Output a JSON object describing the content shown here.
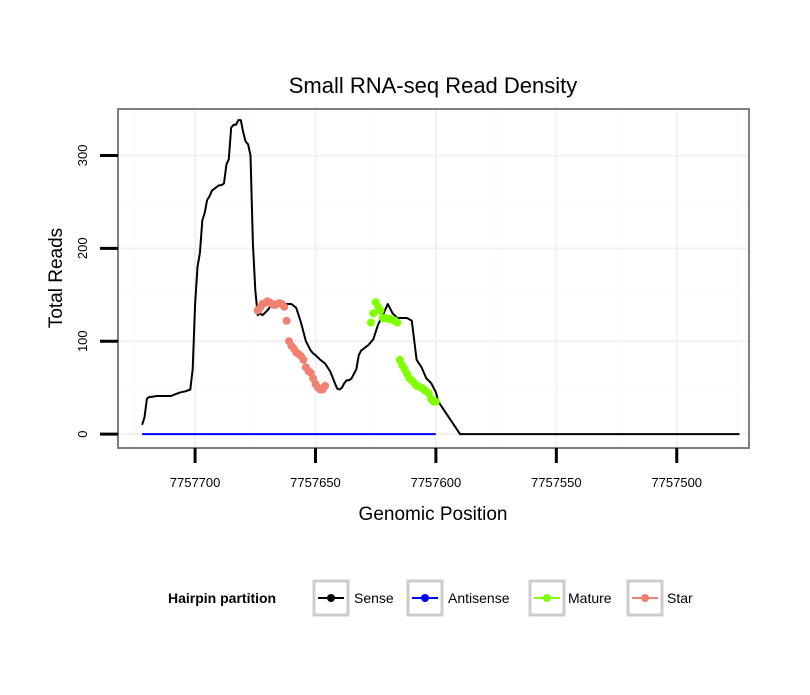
{
  "chart_data": {
    "type": "line",
    "title": "Small RNA-seq Read Density",
    "xlabel": "Genomic Position",
    "ylabel": "Total Reads",
    "x_reversed": true,
    "xlim": [
      7757470,
      7757732
    ],
    "ylim": [
      -15,
      350
    ],
    "x_ticks": [
      7757700,
      7757650,
      7757600,
      7757550,
      7757500
    ],
    "x_tick_labels": [
      "7757700",
      "7757650",
      "7757600",
      "7757550",
      "7757500"
    ],
    "y_ticks": [
      0,
      100,
      200,
      300
    ],
    "y_tick_labels": [
      "0",
      "100",
      "200",
      "300"
    ],
    "grid": true,
    "legend": {
      "title": "Hairpin partition",
      "position": "bottom",
      "entries": [
        {
          "label": "Sense",
          "color": "#000000"
        },
        {
          "label": "Antisense",
          "color": "#0000ff"
        },
        {
          "label": "Mature",
          "color": "#7fff00"
        },
        {
          "label": "Star",
          "color": "#f08070"
        }
      ]
    },
    "series": [
      {
        "name": "Sense",
        "color": "#000000",
        "x": [
          7757722,
          7757721,
          7757720,
          7757719,
          7757718,
          7757716,
          7757714,
          7757712,
          7757710,
          7757708,
          7757706,
          7757704,
          7757703,
          7757702,
          7757701,
          7757700,
          7757699,
          7757698,
          7757697,
          7757696,
          7757695,
          7757694,
          7757693,
          7757691,
          7757690,
          7757689,
          7757688,
          7757687,
          7757686,
          7757685,
          7757684,
          7757683,
          7757682,
          7757681,
          7757680,
          7757679,
          7757678,
          7757677,
          7757676,
          7757675,
          7757674,
          7757673,
          7757672,
          7757670,
          7757668,
          7757666,
          7757664,
          7757662,
          7757660,
          7757658,
          7757656,
          7757654,
          7757653,
          7757652,
          7757651,
          7757650,
          7757648,
          7757646,
          7757644,
          7757643,
          7757642,
          7757641,
          7757640,
          7757639,
          7757638,
          7757637,
          7757636,
          7757635,
          7757634,
          7757633,
          7757632,
          7757631,
          7757630,
          7757628,
          7757626,
          7757624,
          7757622,
          7757620,
          7757618,
          7757616,
          7757614,
          7757612,
          7757610,
          7757608,
          7757606,
          7757604,
          7757602,
          7757601,
          7757600,
          7757599,
          7757590,
          7757570,
          7757550,
          7757530,
          7757510,
          7757490,
          7757474
        ],
        "y": [
          10,
          18,
          38,
          40,
          40,
          41,
          41,
          41,
          41,
          43,
          45,
          46,
          47,
          48,
          70,
          140,
          180,
          195,
          230,
          238,
          252,
          256,
          262,
          266,
          268,
          268,
          270,
          290,
          296,
          330,
          333,
          333,
          338,
          338,
          325,
          315,
          312,
          300,
          205,
          155,
          128,
          130,
          128,
          133,
          140,
          143,
          141,
          140,
          140,
          136,
          120,
          100,
          95,
          90,
          87,
          85,
          80,
          76,
          68,
          62,
          55,
          49,
          48,
          50,
          55,
          58,
          58,
          60,
          65,
          70,
          85,
          90,
          92,
          96,
          102,
          118,
          128,
          140,
          130,
          125,
          125,
          125,
          122,
          80,
          72,
          60,
          55,
          50,
          45,
          35,
          0,
          0,
          0,
          0,
          0,
          0,
          0
        ]
      },
      {
        "name": "Antisense",
        "color": "#0000ff",
        "x": [
          7757722,
          7757600
        ],
        "y": [
          0,
          0
        ]
      },
      {
        "name": "Mature",
        "color": "#7fff00",
        "points_x": [
          7757627,
          7757626,
          7757625,
          7757624,
          7757623,
          7757622,
          7757621,
          7757620,
          7757619,
          7757618,
          7757617,
          7757616,
          7757615,
          7757614,
          7757613,
          7757612,
          7757611,
          7757610,
          7757609,
          7757608,
          7757607,
          7757606,
          7757605,
          7757604,
          7757603,
          7757602,
          7757601,
          7757600
        ],
        "points_y": [
          120,
          130,
          142,
          137,
          133,
          125,
          125,
          124,
          124,
          123,
          122,
          120,
          80,
          74,
          70,
          65,
          60,
          58,
          55,
          52,
          51,
          50,
          48,
          46,
          44,
          38,
          35,
          35
        ]
      },
      {
        "name": "Star",
        "color": "#f08070",
        "points_x": [
          7757674,
          7757673,
          7757672,
          7757671,
          7757670,
          7757669,
          7757668,
          7757667,
          7757666,
          7757665,
          7757664,
          7757663,
          7757662,
          7757661,
          7757660,
          7757659,
          7757658,
          7757657,
          7757656,
          7757655,
          7757654,
          7757653,
          7757652,
          7757651,
          7757650,
          7757649,
          7757648,
          7757647,
          7757646
        ],
        "points_y": [
          133,
          136,
          140,
          141,
          143,
          142,
          140,
          139,
          140,
          141,
          140,
          137,
          122,
          100,
          95,
          92,
          88,
          86,
          84,
          80,
          72,
          68,
          66,
          60,
          54,
          50,
          48,
          48,
          52
        ]
      }
    ]
  }
}
